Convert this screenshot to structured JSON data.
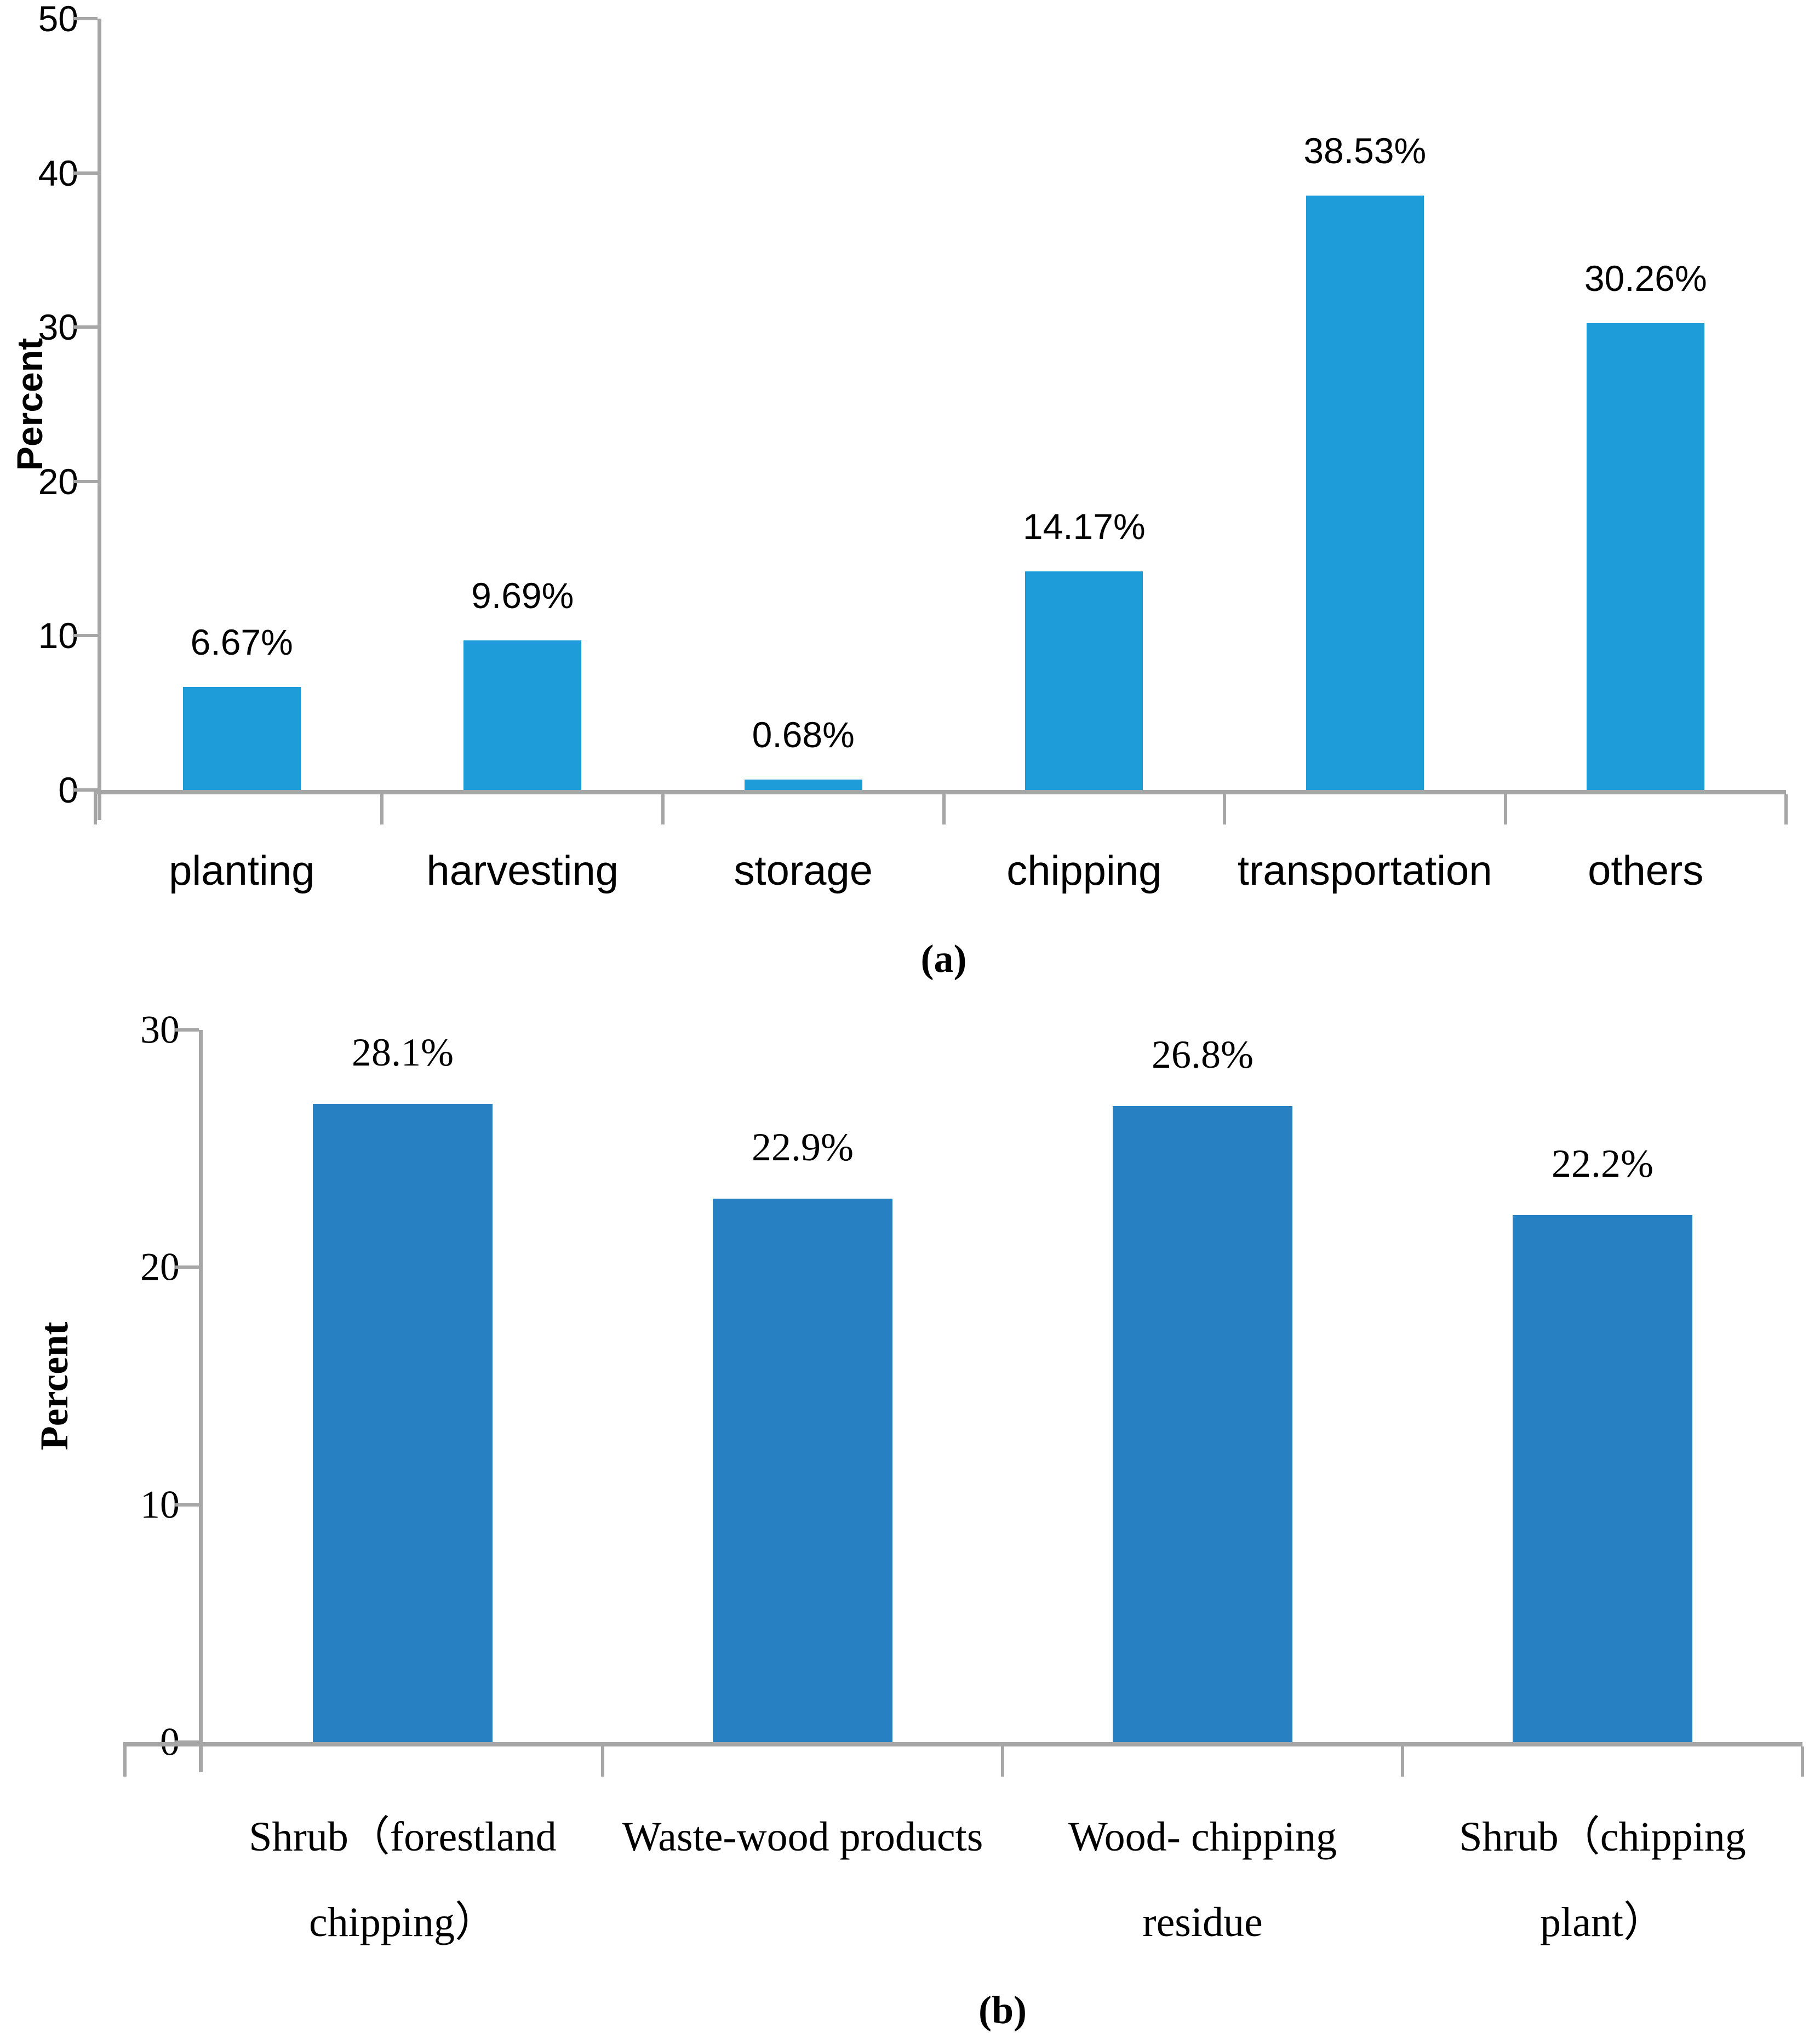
{
  "colors": {
    "axis": "#A6A6A6",
    "text": "#000000",
    "background": "#FFFFFF",
    "chart_a_bar": "#1E9BD9",
    "chart_b_bar": "#2680C2"
  },
  "chart_data": [
    {
      "type": "bar",
      "caption": "(a)",
      "title": "",
      "xlabel": "",
      "ylabel": "Percent",
      "ylim": [
        0,
        50
      ],
      "yticks": [
        0,
        10,
        20,
        30,
        40,
        50
      ],
      "grid": false,
      "legend": "none",
      "bar_color": "#1E9BD9",
      "categories": [
        "planting",
        "harvesting",
        "storage",
        "chipping",
        "transportation",
        "others"
      ],
      "category_lines": [
        [
          "planting"
        ],
        [
          "harvesting"
        ],
        [
          "storage"
        ],
        [
          "chipping"
        ],
        [
          "transportation"
        ],
        [
          "others"
        ]
      ],
      "values": [
        6.67,
        9.69,
        0.68,
        14.17,
        38.53,
        30.26
      ],
      "value_labels": [
        "6.67%",
        "9.69%",
        "0.68%",
        "14.17%",
        "38.53%",
        "30.26%"
      ]
    },
    {
      "type": "bar",
      "caption": "(b)",
      "title": "",
      "xlabel": "",
      "ylabel": "Percent",
      "ylim": [
        0,
        30
      ],
      "yticks": [
        0,
        10,
        20,
        30
      ],
      "grid": false,
      "legend": "none",
      "bar_color": "#2680C2",
      "categories": [
        "Shrub（forestland chipping）",
        "Waste-wood products",
        "Wood- chipping residue",
        "Shrub（chipping plant）"
      ],
      "category_lines": [
        [
          "Shrub（forestland",
          "chipping）"
        ],
        [
          "Waste-wood products"
        ],
        [
          "Wood- chipping",
          "residue"
        ],
        [
          "Shrub（chipping",
          "plant）"
        ]
      ],
      "values": [
        28.1,
        22.9,
        26.8,
        22.2
      ],
      "value_labels": [
        "28.1%",
        "22.9%",
        "26.8%",
        "22.2%"
      ]
    }
  ]
}
